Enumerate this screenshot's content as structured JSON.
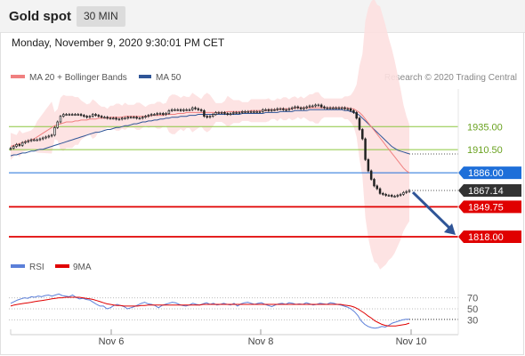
{
  "header": {
    "title": "Gold spot",
    "timeframe": "30 MIN"
  },
  "date_label": "Monday, November 9, 2020 9:30:01 PM CET",
  "credit": "Research © 2020 Trading Central",
  "legend": {
    "ma20": {
      "label": "MA 20 + Bollinger Bands",
      "color": "#f08080"
    },
    "ma50": {
      "label": "MA 50",
      "color": "#2f5597"
    },
    "rsi": {
      "label": "RSI",
      "color": "#5b7fd9"
    },
    "ma9": {
      "label": "9MA",
      "color": "#e00000"
    }
  },
  "colors": {
    "candle": "#222222",
    "bollinger_fill": "#fde0e0",
    "pivot_green": "#8cc63f",
    "resistance_blue": "#1e6fd9",
    "support_red": "#e00000",
    "arrow": "#2f5597",
    "last_price_bg": "#333333"
  },
  "chart_data": [
    {
      "type": "candlestick",
      "symbol": "Gold spot",
      "interval": "30 MIN",
      "x_ticks": [
        "Nov 6",
        "Nov 8",
        "Nov 10"
      ],
      "ylim": [
        1800,
        1975
      ],
      "last_price": 1867.14,
      "levels": [
        {
          "value": 1935.0,
          "label": "1935.00",
          "kind": "pivot"
        },
        {
          "value": 1910.5,
          "label": "1910.50",
          "kind": "pivot"
        },
        {
          "value": 1886.0,
          "label": "1886.00",
          "kind": "resistance"
        },
        {
          "value": 1849.75,
          "label": "1849.75",
          "kind": "support"
        },
        {
          "value": 1818.0,
          "label": "1818.00",
          "kind": "support"
        }
      ],
      "close_series": [
        1912,
        1914,
        1916,
        1915,
        1918,
        1919,
        1920,
        1921,
        1921,
        1921,
        1922,
        1923,
        1924,
        1925,
        1926,
        1934,
        1940,
        1946,
        1948,
        1948,
        1948,
        1948,
        1948,
        1948,
        1947,
        1946,
        1945,
        1946,
        1948,
        1947,
        1946,
        1945,
        1945,
        1944,
        1944,
        1944,
        1943,
        1943,
        1944,
        1944,
        1945,
        1945,
        1945,
        1944,
        1944,
        1945,
        1946,
        1947,
        1948,
        1948,
        1949,
        1949,
        1948,
        1949,
        1952,
        1953,
        1953,
        1953,
        1952,
        1953,
        1953,
        1953,
        1955,
        1954,
        1953,
        1952,
        1946,
        1945,
        1946,
        1948,
        1950,
        1950,
        1950,
        1949,
        1948,
        1949,
        1950,
        1950,
        1950,
        1951,
        1951,
        1951,
        1951,
        1951,
        1951,
        1951,
        1953,
        1953,
        1952,
        1953,
        1953,
        1954,
        1954,
        1953,
        1953,
        1954,
        1955,
        1956,
        1955,
        1954,
        1955,
        1956,
        1957,
        1957,
        1958,
        1958,
        1956,
        1955,
        1955,
        1955,
        1955,
        1955,
        1955,
        1955,
        1954,
        1954,
        1952,
        1950,
        1944,
        1932,
        1922,
        1900,
        1888,
        1879,
        1872,
        1869,
        1864,
        1863,
        1862,
        1862,
        1861,
        1861,
        1862,
        1863,
        1865,
        1866,
        1867.14
      ],
      "ma20": [
        1914,
        1915,
        1916,
        1917,
        1918,
        1919,
        1920,
        1921,
        1922,
        1924,
        1926,
        1928,
        1930,
        1932,
        1934,
        1936,
        1937,
        1938,
        1939,
        1940,
        1940,
        1940,
        1941,
        1941,
        1942,
        1942,
        1942,
        1943,
        1943,
        1943,
        1944,
        1944,
        1944,
        1944,
        1945,
        1945,
        1945,
        1945,
        1945,
        1946,
        1946,
        1946,
        1946,
        1946,
        1946,
        1946,
        1946,
        1946,
        1947,
        1947,
        1947,
        1947,
        1947,
        1948,
        1948,
        1948,
        1948,
        1949,
        1949,
        1949,
        1950,
        1950,
        1950,
        1950,
        1950,
        1950,
        1950,
        1950,
        1950,
        1950,
        1950,
        1950,
        1950,
        1950,
        1951,
        1951,
        1951,
        1951,
        1951,
        1951,
        1951,
        1951,
        1952,
        1952,
        1952,
        1952,
        1952,
        1952,
        1953,
        1953,
        1953,
        1953,
        1954,
        1954,
        1954,
        1954,
        1954,
        1955,
        1955,
        1955,
        1955,
        1955,
        1955,
        1955,
        1955,
        1955,
        1955,
        1955,
        1955,
        1955,
        1955,
        1955,
        1955,
        1955,
        1955,
        1955,
        1954,
        1954,
        1952,
        1950,
        1947,
        1943,
        1939,
        1935,
        1931,
        1927,
        1923,
        1919,
        1915,
        1911,
        1907,
        1903,
        1899,
        1895,
        1891,
        1888,
        1886
      ],
      "ma50": [
        1904,
        1905,
        1905,
        1906,
        1907,
        1907,
        1908,
        1909,
        1909,
        1910,
        1911,
        1911,
        1912,
        1913,
        1914,
        1915,
        1916,
        1917,
        1918,
        1919,
        1920,
        1921,
        1922,
        1923,
        1924,
        1925,
        1926,
        1927,
        1928,
        1929,
        1929,
        1930,
        1931,
        1932,
        1932,
        1933,
        1934,
        1934,
        1935,
        1936,
        1936,
        1937,
        1938,
        1938,
        1939,
        1940,
        1940,
        1941,
        1941,
        1942,
        1942,
        1943,
        1943,
        1944,
        1944,
        1945,
        1945,
        1945,
        1946,
        1946,
        1946,
        1947,
        1947,
        1947,
        1948,
        1948,
        1948,
        1948,
        1948,
        1948,
        1948,
        1948,
        1948,
        1948,
        1948,
        1948,
        1948,
        1948,
        1948,
        1949,
        1949,
        1949,
        1949,
        1949,
        1949,
        1949,
        1949,
        1950,
        1950,
        1950,
        1950,
        1950,
        1951,
        1951,
        1951,
        1951,
        1951,
        1952,
        1952,
        1952,
        1952,
        1952,
        1953,
        1953,
        1953,
        1953,
        1953,
        1953,
        1953,
        1953,
        1953,
        1953,
        1953,
        1953,
        1952,
        1952,
        1951,
        1950,
        1949,
        1947,
        1944,
        1941,
        1938,
        1935,
        1932,
        1929,
        1926,
        1923,
        1920,
        1917,
        1914,
        1912,
        1910,
        1909,
        1908,
        1907,
        1906
      ]
    },
    {
      "type": "line",
      "indicator": "RSI",
      "ylim": [
        0,
        100
      ],
      "y_ticks": [
        70,
        50,
        30
      ],
      "x_ticks": [
        "Nov 6",
        "Nov 8",
        "Nov 10"
      ],
      "series": [
        {
          "name": "RSI",
          "values": [
            60,
            63,
            66,
            68,
            70,
            69,
            72,
            71,
            73,
            72,
            74,
            75,
            73,
            75,
            77,
            74,
            73,
            72,
            75,
            71,
            68,
            69,
            67,
            66,
            62,
            58,
            55,
            55,
            50,
            52,
            56,
            58,
            56,
            54,
            50,
            52,
            54,
            57,
            60,
            62,
            59,
            58,
            56,
            52,
            56,
            58,
            60,
            62,
            61,
            58,
            56,
            55,
            57,
            60,
            58,
            57,
            59,
            61,
            58,
            60,
            57,
            58,
            60,
            58,
            57,
            60,
            55,
            59,
            61,
            62,
            60,
            58,
            60,
            61,
            58,
            56,
            54,
            57,
            59,
            60,
            58,
            61,
            60,
            58,
            59,
            58,
            61,
            59,
            57,
            58,
            60,
            59,
            58,
            61,
            60,
            58,
            57,
            55,
            53,
            50,
            45,
            38,
            28,
            22,
            18,
            16,
            15,
            16,
            18,
            17,
            20,
            24,
            26,
            28,
            30,
            31,
            31
          ]
        },
        {
          "name": "9MA",
          "values": [
            55,
            57,
            58,
            59,
            60,
            61,
            62,
            63,
            64,
            65,
            66,
            67,
            68,
            69,
            70,
            70,
            71,
            71,
            71,
            71,
            71,
            70,
            69,
            68,
            67,
            65,
            63,
            61,
            59,
            58,
            57,
            56,
            56,
            55,
            55,
            55,
            55,
            55,
            56,
            56,
            57,
            57,
            57,
            57,
            57,
            57,
            57,
            57,
            57,
            57,
            57,
            57,
            57,
            57,
            57,
            57,
            58,
            58,
            58,
            58,
            58,
            58,
            58,
            58,
            58,
            58,
            58,
            58,
            58,
            58,
            58,
            58,
            58,
            58,
            58,
            58,
            58,
            58,
            58,
            58,
            58,
            58,
            58,
            58,
            58,
            58,
            58,
            58,
            58,
            58,
            58,
            58,
            58,
            58,
            58,
            58,
            58,
            57,
            56,
            55,
            53,
            50,
            46,
            42,
            37,
            33,
            28,
            25,
            22,
            20,
            19,
            19,
            19,
            20,
            21,
            22,
            24
          ]
        }
      ]
    }
  ]
}
